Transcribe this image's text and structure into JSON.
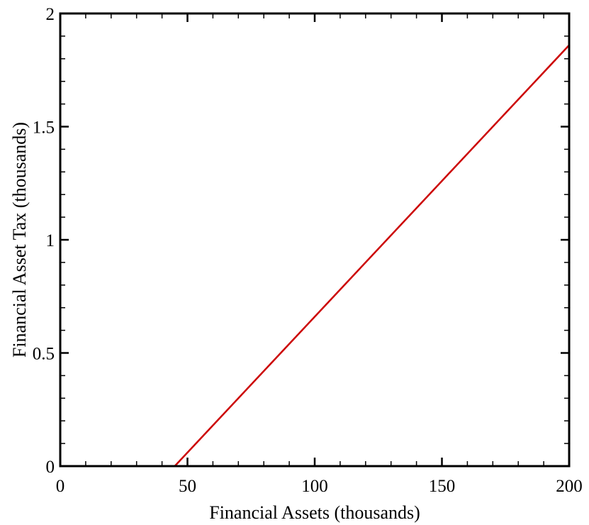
{
  "chart_data": {
    "type": "line",
    "title": "",
    "xlabel": "Financial Assets (thousands)",
    "ylabel": "Financial Asset Tax (thousands)",
    "xlim": [
      0,
      200
    ],
    "ylim": [
      0,
      2
    ],
    "x_ticks": [
      0,
      50,
      100,
      150,
      200
    ],
    "x_tick_labels": [
      "0",
      "50",
      "100",
      "150",
      "200"
    ],
    "x_minor_step": 10,
    "y_ticks": [
      0,
      0.5,
      1,
      1.5,
      2
    ],
    "y_tick_labels": [
      "0",
      "0.5",
      "1",
      "1.5",
      "2"
    ],
    "y_minor_step": 0.1,
    "grid": false,
    "series": [
      {
        "color": "#cc0000",
        "points": [
          [
            45,
            0
          ],
          [
            200,
            1.86
          ]
        ]
      }
    ]
  }
}
